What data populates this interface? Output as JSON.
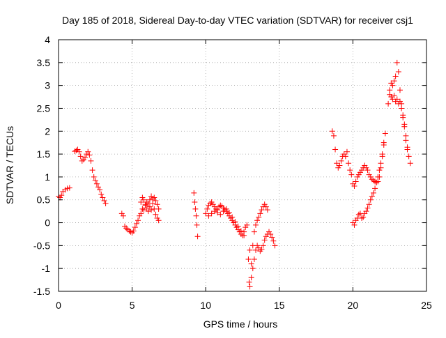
{
  "chart_data": {
    "type": "scatter",
    "title": "Day 185 of 2018, Sidereal Day-to-day VTEC variation (SDTVAR) for receiver csj1",
    "xlabel": "GPS time / hours",
    "ylabel": "SDTVAR / TECUs",
    "xlim": [
      0,
      25
    ],
    "ylim": [
      -1.5,
      4
    ],
    "xticks": [
      0,
      5,
      10,
      15,
      20,
      25
    ],
    "yticks": [
      -1.5,
      -1,
      -0.5,
      0,
      0.5,
      1,
      1.5,
      2,
      2.5,
      3,
      3.5,
      4
    ],
    "xtick_labels": [
      "0",
      "5",
      "10",
      "15",
      "20",
      "25"
    ],
    "ytick_labels": [
      "-1.5",
      "-1",
      "-0.5",
      "0",
      "0.5",
      "1",
      "1.5",
      "2",
      "2.5",
      "3",
      "3.5",
      "4"
    ],
    "grid": true,
    "marker": "+",
    "marker_color": "#ff0000",
    "segments": [
      {
        "x": [
          0.0,
          0.1,
          0.2,
          0.3,
          0.45,
          0.6,
          0.75
        ],
        "y": [
          0.58,
          0.55,
          0.6,
          0.68,
          0.72,
          0.75,
          0.76
        ]
      },
      {
        "x": [
          1.1,
          1.2,
          1.3,
          1.4,
          1.5,
          1.6,
          1.7,
          1.8,
          1.9,
          2.0,
          2.1,
          2.2,
          2.3,
          2.4,
          2.5,
          2.6,
          2.7,
          2.8,
          2.9,
          3.0,
          3.1,
          3.2
        ],
        "y": [
          1.56,
          1.58,
          1.6,
          1.55,
          1.45,
          1.35,
          1.38,
          1.42,
          1.5,
          1.55,
          1.48,
          1.35,
          1.15,
          1.0,
          0.92,
          0.85,
          0.78,
          0.72,
          0.62,
          0.55,
          0.48,
          0.42
        ]
      },
      {
        "x": [
          4.3,
          4.4,
          4.5,
          4.6,
          4.7,
          4.8,
          4.9,
          5.0,
          5.1,
          5.2,
          5.3,
          5.4,
          5.5,
          5.6
        ],
        "y": [
          0.2,
          0.15,
          -0.08,
          -0.12,
          -0.15,
          -0.18,
          -0.2,
          -0.22,
          -0.18,
          -0.1,
          -0.02,
          0.05,
          0.15,
          0.2
        ]
      },
      {
        "x": [
          5.6,
          5.7,
          5.8,
          5.9,
          6.0,
          6.1,
          6.2,
          6.3,
          6.4,
          6.5,
          6.6,
          6.7,
          6.8
        ],
        "y": [
          0.45,
          0.55,
          0.5,
          0.38,
          0.32,
          0.25,
          0.5,
          0.58,
          0.52,
          0.3,
          0.18,
          0.1,
          0.05
        ]
      },
      {
        "x": [
          5.7,
          5.8,
          5.9,
          6.0,
          6.1,
          6.2,
          6.3,
          6.4,
          6.5,
          6.6,
          6.7,
          6.8
        ],
        "y": [
          0.3,
          0.28,
          0.4,
          0.45,
          0.42,
          0.35,
          0.28,
          0.42,
          0.55,
          0.48,
          0.4,
          0.3
        ]
      },
      {
        "x": [
          9.2,
          9.25,
          9.3,
          9.35,
          9.4,
          9.45
        ],
        "y": [
          0.65,
          0.45,
          0.3,
          0.15,
          -0.05,
          -0.3
        ]
      },
      {
        "x": [
          10.0,
          10.1,
          10.2,
          10.3,
          10.4,
          10.5,
          10.6,
          10.7,
          10.8,
          10.9,
          11.0,
          11.1,
          11.2,
          11.3,
          11.4,
          11.5,
          11.6,
          11.7,
          11.8,
          11.9,
          12.0,
          12.1,
          12.2,
          12.3,
          12.4,
          12.5,
          12.6,
          12.7,
          12.8
        ],
        "y": [
          0.2,
          0.3,
          0.38,
          0.42,
          0.45,
          0.4,
          0.35,
          0.3,
          0.28,
          0.35,
          0.38,
          0.36,
          0.32,
          0.28,
          0.25,
          0.2,
          0.15,
          0.1,
          0.05,
          0.0,
          -0.05,
          -0.1,
          -0.15,
          -0.2,
          -0.25,
          -0.28,
          -0.2,
          -0.1,
          -0.05
        ]
      },
      {
        "x": [
          10.2,
          10.4,
          10.6,
          10.8,
          11.0,
          11.2,
          11.4,
          11.6,
          11.8,
          12.0,
          12.2,
          12.4,
          12.6
        ],
        "y": [
          0.15,
          0.2,
          0.25,
          0.22,
          0.18,
          0.25,
          0.3,
          0.22,
          0.12,
          0.02,
          -0.08,
          -0.18,
          -0.28
        ]
      },
      {
        "x": [
          12.9,
          12.95,
          13.0,
          13.1,
          13.2,
          13.3,
          13.4,
          13.5,
          13.6,
          13.7,
          13.8,
          13.9,
          14.0,
          14.1,
          14.2,
          14.3,
          14.4,
          14.5,
          14.6,
          14.7
        ],
        "y": [
          -0.8,
          -1.3,
          -1.4,
          -1.2,
          -1.0,
          -0.8,
          -0.6,
          -0.5,
          -0.55,
          -0.62,
          -0.58,
          -0.5,
          -0.38,
          -0.3,
          -0.25,
          -0.2,
          -0.25,
          -0.32,
          -0.4,
          -0.5
        ]
      },
      {
        "x": [
          13.0,
          13.1,
          13.2,
          13.3,
          13.4,
          13.5,
          13.6,
          13.7,
          13.8,
          13.9,
          14.0,
          14.1,
          14.2
        ],
        "y": [
          -0.6,
          -0.9,
          -0.5,
          -0.2,
          -0.05,
          0.05,
          0.12,
          0.2,
          0.28,
          0.35,
          0.4,
          0.35,
          0.28
        ]
      },
      {
        "x": [
          18.6,
          18.7,
          18.8,
          18.9,
          19.0,
          19.1,
          19.2,
          19.3,
          19.4,
          19.5,
          19.6,
          19.7,
          19.8,
          19.9,
          20.0,
          20.1,
          20.2,
          20.3,
          20.4,
          20.5,
          20.6,
          20.7,
          20.8,
          20.9,
          21.0,
          21.1,
          21.2,
          21.3,
          21.4,
          21.5,
          21.6,
          21.7,
          21.8,
          21.9,
          22.0,
          22.1
        ],
        "y": [
          2.0,
          1.9,
          1.6,
          1.3,
          1.2,
          1.25,
          1.35,
          1.45,
          1.5,
          1.45,
          1.55,
          1.3,
          1.15,
          1.05,
          0.85,
          0.8,
          0.9,
          1.0,
          1.05,
          1.1,
          1.15,
          1.2,
          1.25,
          1.2,
          1.15,
          1.05,
          1.0,
          0.95,
          0.92,
          0.9,
          0.88,
          0.9,
          1.0,
          1.2,
          1.45,
          1.7
        ]
      },
      {
        "x": [
          20.0,
          20.1,
          20.2,
          20.3,
          20.4,
          20.5,
          20.6,
          20.7,
          20.8,
          20.9,
          21.0,
          21.1,
          21.2,
          21.3,
          21.4,
          21.5,
          21.6,
          21.7,
          21.8,
          21.9,
          22.0,
          22.1,
          22.2
        ],
        "y": [
          0.0,
          -0.05,
          0.05,
          0.1,
          0.18,
          0.2,
          0.1,
          0.12,
          0.2,
          0.25,
          0.32,
          0.4,
          0.5,
          0.58,
          0.65,
          0.75,
          0.88,
          1.0,
          1.15,
          1.3,
          1.5,
          1.75,
          1.95
        ]
      },
      {
        "x": [
          22.4,
          22.5,
          22.6,
          22.7,
          22.8,
          22.9,
          23.0,
          23.1,
          23.2,
          23.3,
          23.4,
          23.5,
          23.6,
          23.7,
          23.8,
          23.9
        ],
        "y": [
          2.6,
          2.9,
          3.05,
          3.0,
          3.1,
          3.2,
          3.5,
          3.3,
          2.9,
          2.6,
          2.3,
          2.1,
          1.8,
          1.6,
          1.45,
          1.3
        ]
      },
      {
        "x": [
          22.5,
          22.6,
          22.7,
          22.8,
          22.9,
          23.0,
          23.1,
          23.2,
          23.3,
          23.4,
          23.5,
          23.6,
          23.7
        ],
        "y": [
          2.8,
          2.75,
          2.7,
          2.78,
          2.65,
          2.7,
          2.6,
          2.65,
          2.5,
          2.35,
          2.15,
          1.9,
          1.65
        ]
      }
    ]
  }
}
